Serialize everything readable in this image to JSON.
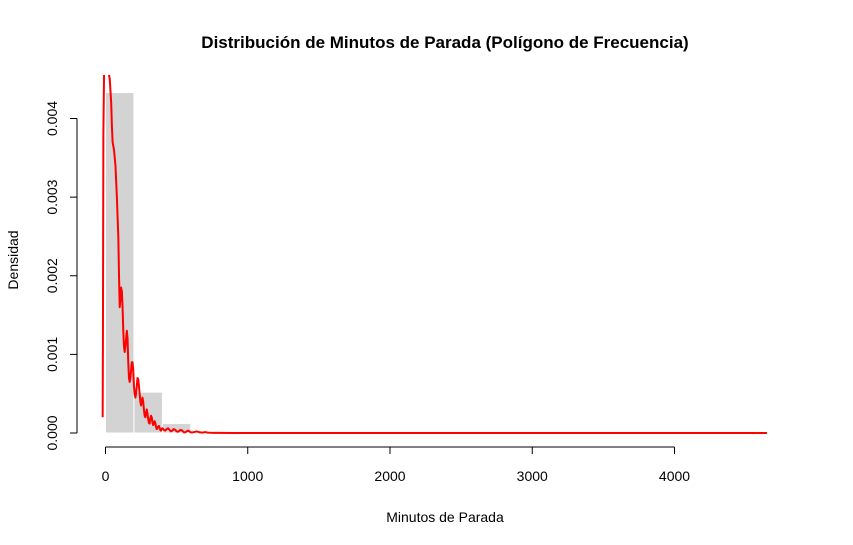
{
  "chart_data": {
    "type": "bar",
    "title": "Distribución de Minutos de Parada (Polígono de Frecuencia)",
    "xlabel": "Minutos de Parada",
    "ylabel": "Densidad",
    "xlim": [
      -20,
      4650
    ],
    "ylim": [
      0,
      0.0045
    ],
    "x_ticks": [
      0,
      1000,
      2000,
      3000,
      4000
    ],
    "x_tick_labels": [
      "0",
      "1000",
      "2000",
      "3000",
      "4000"
    ],
    "y_ticks": [
      0,
      0.001,
      0.002,
      0.003,
      0.004
    ],
    "y_tick_labels": [
      "0.000",
      "0.001",
      "0.002",
      "0.003",
      "0.004"
    ],
    "grid": false,
    "histogram": {
      "color": "#d3d3d3",
      "bins": [
        {
          "start": 0,
          "end": 200,
          "density": 0.00433
        },
        {
          "start": 200,
          "end": 400,
          "density": 0.00052
        },
        {
          "start": 400,
          "end": 600,
          "density": 0.00012
        },
        {
          "start": 600,
          "end": 800,
          "density": 2e-05
        }
      ]
    },
    "series": [
      {
        "type": "line",
        "color": "#ff0000",
        "x": [
          -20,
          -18,
          -15,
          -10,
          -5,
          0,
          5,
          10,
          15,
          20,
          30,
          40,
          45,
          50,
          60,
          70,
          80,
          90,
          95,
          100,
          105,
          110,
          115,
          120,
          125,
          130,
          135,
          140,
          145,
          150,
          155,
          160,
          165,
          170,
          175,
          180,
          185,
          190,
          195,
          200,
          205,
          210,
          215,
          220,
          225,
          230,
          235,
          240,
          245,
          250,
          255,
          260,
          265,
          270,
          275,
          280,
          285,
          290,
          295,
          300,
          305,
          310,
          315,
          320,
          325,
          330,
          335,
          340,
          345,
          350,
          355,
          360,
          365,
          370,
          375,
          380,
          385,
          390,
          395,
          400,
          410,
          420,
          430,
          440,
          450,
          460,
          470,
          480,
          490,
          500,
          510,
          520,
          530,
          540,
          550,
          560,
          570,
          580,
          590,
          600,
          620,
          640,
          660,
          680,
          700,
          720,
          740,
          760,
          800,
          900,
          1000,
          1500,
          2000,
          2500,
          3000,
          3500,
          4000,
          4500,
          4650
        ],
        "y": [
          0.0002,
          0.0012,
          0.0038,
          0.0046,
          0.0046,
          0.0046,
          0.0046,
          0.0046,
          0.0046,
          0.0046,
          0.0045,
          0.0042,
          0.0039,
          0.0037,
          0.0036,
          0.0034,
          0.003,
          0.0025,
          0.002,
          0.0016,
          0.0017,
          0.00185,
          0.0018,
          0.0016,
          0.0013,
          0.0011,
          0.00103,
          0.0011,
          0.0012,
          0.0013,
          0.0012,
          0.0009,
          0.0007,
          0.00065,
          0.0007,
          0.0008,
          0.0009,
          0.0009,
          0.0008,
          0.0006,
          0.0005,
          0.00045,
          0.0005,
          0.0006,
          0.0007,
          0.00068,
          0.0006,
          0.0005,
          0.0004,
          0.00035,
          0.0004,
          0.00045,
          0.0004,
          0.0003,
          0.00022,
          0.0002,
          0.00025,
          0.0003,
          0.00025,
          0.00018,
          0.00013,
          0.00012,
          0.00018,
          0.00022,
          0.0002,
          0.00013,
          0.0001,
          0.00012,
          0.00015,
          0.00013,
          8e-05,
          5e-05,
          6e-05,
          8e-05,
          9e-05,
          7e-05,
          4e-05,
          3e-05,
          5e-05,
          6e-05,
          4e-05,
          3e-05,
          5e-05,
          6e-05,
          4e-05,
          2e-05,
          3e-05,
          5e-05,
          4e-05,
          2e-05,
          1.5e-05,
          3e-05,
          4e-05,
          3e-05,
          1e-05,
          8e-06,
          2e-05,
          3e-05,
          2e-05,
          8e-06,
          1e-05,
          2e-05,
          1e-05,
          5e-06,
          1.2e-05,
          5e-06,
          3e-06,
          2e-06,
          1e-06,
          0,
          0,
          0,
          0,
          0,
          0,
          0,
          0,
          0,
          0
        ]
      }
    ]
  }
}
